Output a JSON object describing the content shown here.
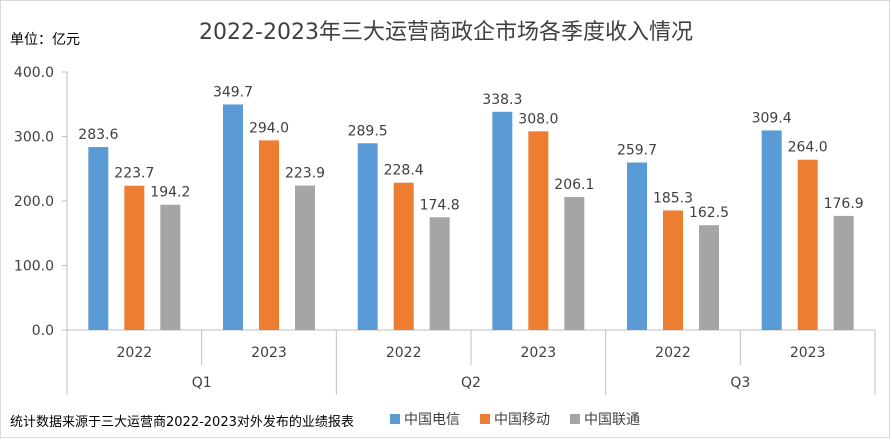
{
  "chart_data": {
    "type": "bar",
    "title": "2022-2023年三大运营商政企市场各季度收入情况",
    "unit_label": "单位：亿元",
    "source_note": "统计数据来源于三大运营商2022-2023对外发布的业绩报表",
    "ylim": [
      0,
      400
    ],
    "yticks": [
      "0.0",
      "100.0",
      "200.0",
      "300.0",
      "400.0"
    ],
    "groups": [
      {
        "quarter": "Q1",
        "years": [
          "2022",
          "2023"
        ]
      },
      {
        "quarter": "Q2",
        "years": [
          "2022",
          "2023"
        ]
      },
      {
        "quarter": "Q3",
        "years": [
          "2022",
          "2023"
        ]
      }
    ],
    "categories": [
      "Q1-2022",
      "Q1-2023",
      "Q2-2022",
      "Q2-2023",
      "Q3-2022",
      "Q3-2023"
    ],
    "series": [
      {
        "name": "中国电信",
        "color": "#5b9bd5",
        "values": [
          283.6,
          349.7,
          289.5,
          338.3,
          259.7,
          309.4
        ],
        "labels": [
          "283.6",
          "349.7",
          "289.5",
          "338.3",
          "259.7",
          "309.4"
        ]
      },
      {
        "name": "中国移动",
        "color": "#ed7d31",
        "values": [
          223.7,
          294.0,
          228.4,
          308.0,
          185.3,
          264.0
        ],
        "labels": [
          "223.7",
          "294.0",
          "228.4",
          "308.0",
          "185.3",
          "264.0"
        ]
      },
      {
        "name": "中国联通",
        "color": "#a5a5a5",
        "values": [
          194.2,
          223.9,
          174.8,
          206.1,
          162.5,
          176.9
        ],
        "labels": [
          "194.2",
          "223.9",
          "174.8",
          "206.1",
          "162.5",
          "176.9"
        ]
      }
    ],
    "grid": false,
    "legend_position": "bottom"
  }
}
